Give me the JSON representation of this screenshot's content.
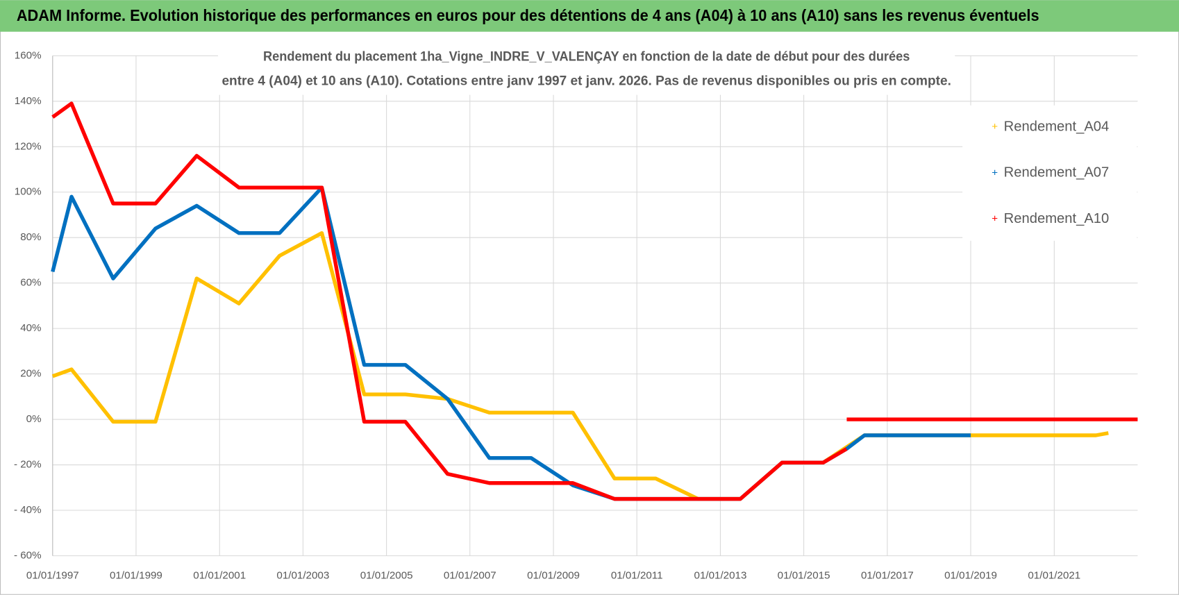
{
  "chart_data": {
    "type": "line",
    "title": "ADAM Informe. Evolution historique des performances en euros pour des détentions de 4 ans (A04) à 10 ans (A10) sans les revenus éventuels",
    "subtitle": [
      "Rendement du placement 1ha_Vigne_INDRE_V_VALENÇAY en fonction de la date de début pour des durées",
      "entre 4 (A04) et 10 ans (A10).  Cotations entre janv 1997 et janv. 2026. Pas de revenus disponibles ou pris en compte."
    ],
    "xlim": [
      "1997-01-01",
      "2023-01-01"
    ],
    "xticks": [
      {
        "value": "1997-01-01",
        "label": "01/01/1997"
      },
      {
        "value": "1999-01-01",
        "label": "01/01/1999"
      },
      {
        "value": "2001-01-01",
        "label": "01/01/2001"
      },
      {
        "value": "2003-01-01",
        "label": "01/01/2003"
      },
      {
        "value": "2005-01-01",
        "label": "01/01/2005"
      },
      {
        "value": "2007-01-01",
        "label": "01/01/2007"
      },
      {
        "value": "2009-01-01",
        "label": "01/01/2009"
      },
      {
        "value": "2011-01-01",
        "label": "01/01/2011"
      },
      {
        "value": "2013-01-01",
        "label": "01/01/2013"
      },
      {
        "value": "2015-01-01",
        "label": "01/01/2015"
      },
      {
        "value": "2017-01-01",
        "label": "01/01/2017"
      },
      {
        "value": "2019-01-01",
        "label": "01/01/2019"
      },
      {
        "value": "2021-01-01",
        "label": "01/01/2021"
      }
    ],
    "ylim": [
      -60,
      160
    ],
    "yticks": [
      {
        "value": -60,
        "label": "- 60%"
      },
      {
        "value": -40,
        "label": "- 40%"
      },
      {
        "value": -20,
        "label": "- 20%"
      },
      {
        "value": 0,
        "label": "0%"
      },
      {
        "value": 20,
        "label": "20%"
      },
      {
        "value": 40,
        "label": "40%"
      },
      {
        "value": 60,
        "label": "60%"
      },
      {
        "value": 80,
        "label": "80%"
      },
      {
        "value": 100,
        "label": "100%"
      },
      {
        "value": 120,
        "label": "120%"
      },
      {
        "value": 140,
        "label": "140%"
      },
      {
        "value": 160,
        "label": "160%"
      }
    ],
    "grid": true,
    "legend": "right",
    "series": [
      {
        "name": "Rendement_A04",
        "color": "#ffc000",
        "x": [
          "1997-01-01",
          "1997-06-15",
          "1998-06-15",
          "1999-06-20",
          "2000-06-15",
          "2001-06-20",
          "2002-06-10",
          "2003-06-15",
          "2004-06-20",
          "2005-06-15",
          "2006-06-20",
          "2007-06-20",
          "2009-06-20",
          "2010-06-20",
          "2011-06-15",
          "2012-06-20",
          "2013-06-25",
          "2014-06-25",
          "2015-06-20",
          "2016-06-15",
          "2022-01-01",
          "2022-04-20"
        ],
        "values": [
          19,
          22,
          -1,
          -1,
          62,
          51,
          72,
          82,
          11,
          11,
          9,
          3,
          3,
          -26,
          -26,
          -35,
          -35,
          -19,
          -19,
          -7,
          -7,
          -6
        ]
      },
      {
        "name": "Rendement_A07",
        "color": "#0070c0",
        "x": [
          "1997-01-01",
          "1997-06-15",
          "1998-06-15",
          "1999-06-20",
          "2000-06-15",
          "2001-06-20",
          "2002-06-10",
          "2003-06-15",
          "2004-06-20",
          "2005-06-15",
          "2006-06-20",
          "2007-06-20",
          "2008-06-20",
          "2009-06-20",
          "2010-06-20",
          "2013-06-25",
          "2014-06-25",
          "2015-06-20",
          "2016-01-10",
          "2016-06-15",
          "2019-01-01"
        ],
        "values": [
          65,
          98,
          62,
          84,
          94,
          82,
          82,
          102,
          24,
          24,
          9,
          -17,
          -17,
          -29,
          -35,
          -35,
          -19,
          -19,
          -13,
          -7,
          -7
        ]
      },
      {
        "name": "Rendement_A10",
        "color": "#ff0000",
        "x": [
          "1997-01-01",
          "1997-06-15",
          "1998-06-15",
          "1999-06-20",
          "2000-06-15",
          "2001-06-20",
          "2003-06-15",
          "2004-06-20",
          "2005-06-15",
          "2006-06-20",
          "2007-06-20",
          "2009-06-20",
          "2010-06-20",
          "2013-06-25",
          "2014-06-25",
          "2015-06-20",
          "2016-01-10",
          "2016-01-11",
          "2016-01-12",
          "2023-01-01"
        ],
        "values": [
          133,
          139,
          95,
          95,
          116,
          102,
          102,
          -1,
          -1,
          -24,
          -28,
          -28,
          -35,
          -35,
          -19,
          -19,
          -13,
          null,
          0,
          0
        ]
      }
    ]
  }
}
